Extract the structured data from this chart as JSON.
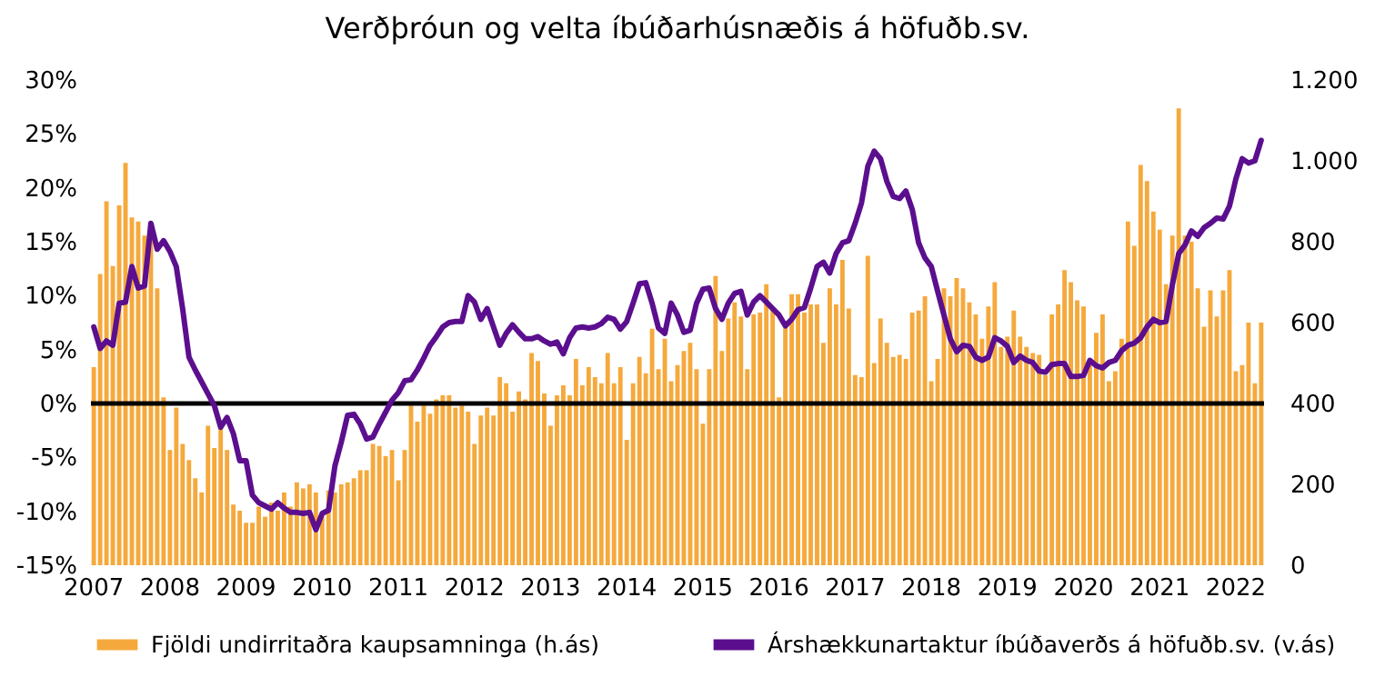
{
  "chart_data": {
    "type": "bar",
    "title": "Verðþróun og velta íbúðarhúsnæðis á höfuðb.sv.",
    "categories": [
      "2007",
      null,
      null,
      null,
      null,
      null,
      null,
      null,
      null,
      null,
      null,
      null,
      "2008",
      null,
      null,
      null,
      null,
      null,
      null,
      null,
      null,
      null,
      null,
      null,
      "2009",
      null,
      null,
      null,
      null,
      null,
      null,
      null,
      null,
      null,
      null,
      null,
      "2010",
      null,
      null,
      null,
      null,
      null,
      null,
      null,
      null,
      null,
      null,
      null,
      "2011",
      null,
      null,
      null,
      null,
      null,
      null,
      null,
      null,
      null,
      null,
      null,
      "2012",
      null,
      null,
      null,
      null,
      null,
      null,
      null,
      null,
      null,
      null,
      null,
      "2013",
      null,
      null,
      null,
      null,
      null,
      null,
      null,
      null,
      null,
      null,
      null,
      "2014",
      null,
      null,
      null,
      null,
      null,
      null,
      null,
      null,
      null,
      null,
      null,
      "2015",
      null,
      null,
      null,
      null,
      null,
      null,
      null,
      null,
      null,
      null,
      null,
      "2016",
      null,
      null,
      null,
      null,
      null,
      null,
      null,
      null,
      null,
      null,
      null,
      "2017",
      null,
      null,
      null,
      null,
      null,
      null,
      null,
      null,
      null,
      null,
      null,
      "2018",
      null,
      null,
      null,
      null,
      null,
      null,
      null,
      null,
      null,
      null,
      null,
      "2019",
      null,
      null,
      null,
      null,
      null,
      null,
      null,
      null,
      null,
      null,
      null,
      "2020",
      null,
      null,
      null,
      null,
      null,
      null,
      null,
      null,
      null,
      null,
      null,
      "2021",
      null,
      null,
      null,
      null,
      null,
      null,
      null,
      null,
      null,
      null,
      null,
      "2022",
      null,
      null,
      null,
      null
    ],
    "series": [
      {
        "name": "Fjöldi undirritaðra kaupsamninga (h.ás)",
        "axis": "y2",
        "color": "#f5a93c",
        "values": [
          490,
          720,
          900,
          740,
          890,
          995,
          860,
          850,
          815,
          825,
          685,
          415,
          285,
          390,
          300,
          260,
          215,
          180,
          345,
          290,
          340,
          285,
          150,
          135,
          105,
          105,
          145,
          120,
          155,
          135,
          180,
          145,
          205,
          190,
          200,
          180,
          120,
          185,
          180,
          200,
          205,
          215,
          235,
          235,
          300,
          295,
          270,
          285,
          210,
          285,
          395,
          355,
          395,
          375,
          410,
          420,
          420,
          390,
          395,
          380,
          300,
          370,
          390,
          370,
          465,
          450,
          380,
          430,
          410,
          525,
          505,
          425,
          345,
          420,
          445,
          420,
          510,
          445,
          490,
          465,
          450,
          525,
          450,
          490,
          310,
          450,
          515,
          475,
          585,
          485,
          560,
          455,
          495,
          530,
          550,
          485,
          350,
          485,
          715,
          530,
          610,
          650,
          615,
          485,
          620,
          625,
          695,
          635,
          415,
          590,
          670,
          670,
          625,
          645,
          645,
          550,
          685,
          645,
          755,
          635,
          470,
          465,
          765,
          500,
          610,
          550,
          515,
          520,
          510,
          625,
          630,
          665,
          455,
          510,
          685,
          665,
          710,
          685,
          650,
          620,
          560,
          640,
          700,
          540,
          565,
          630,
          565,
          540,
          525,
          520,
          470,
          620,
          645,
          730,
          700,
          655,
          640,
          500,
          575,
          620,
          455,
          480,
          560,
          850,
          790,
          990,
          950,
          875,
          830,
          695,
          815,
          1130,
          815,
          800,
          685,
          590,
          680,
          615,
          680,
          730,
          480,
          495,
          600,
          450,
          600
        ]
      },
      {
        "name": "Árshækkunartaktur íbúðaverðs á höfuðb.sv. (v.ás)",
        "type": "line",
        "color": "#5b0f8e",
        "values": [
          7.1,
          5.1,
          5.8,
          5.4,
          9.3,
          9.4,
          12.7,
          10.7,
          10.9,
          16.7,
          14.3,
          15.1,
          14.1,
          12.7,
          8.8,
          4.3,
          3.1,
          2,
          0.9,
          -0.2,
          -2.2,
          -1.3,
          -2.8,
          -5.3,
          -5.3,
          -8.5,
          -9.2,
          -9.5,
          -9.8,
          -9.2,
          -9.7,
          -10.1,
          -10.1,
          -10.2,
          -10.1,
          -11.7,
          -10.2,
          -9.9,
          -5.8,
          -3.6,
          -1.1,
          -1,
          -1.9,
          -3.3,
          -3.1,
          -1.9,
          -0.8,
          0.3,
          1,
          2.1,
          2.2,
          3.1,
          4.2,
          5.4,
          6.2,
          7.1,
          7.5,
          7.6,
          7.6,
          10,
          9.4,
          7.8,
          8.8,
          7.1,
          5.4,
          6.5,
          7.3,
          6.6,
          6,
          6,
          6.2,
          5.8,
          5.5,
          5.7,
          4.6,
          6.1,
          7,
          7.1,
          7,
          7.1,
          7.4,
          8,
          7.8,
          6.9,
          7.6,
          9.3,
          11.1,
          11.2,
          9.3,
          7,
          6.5,
          9.3,
          8.2,
          6.6,
          6.8,
          9.3,
          10.6,
          10.7,
          8.8,
          7.8,
          9.3,
          10.2,
          10.4,
          8.2,
          9.4,
          10,
          9.4,
          8.8,
          8.2,
          7.2,
          7.8,
          8.7,
          8.9,
          10.7,
          12.7,
          13.1,
          12.1,
          13.9,
          14.9,
          15.1,
          16.7,
          18.6,
          22,
          23.4,
          22.7,
          20.6,
          19.2,
          19,
          19.7,
          18,
          14.9,
          13.5,
          12.7,
          10.4,
          8.2,
          6,
          4.8,
          5.4,
          5.3,
          4.3,
          4,
          4.3,
          6.1,
          5.8,
          5.3,
          3.8,
          4.4,
          4,
          3.8,
          3,
          2.9,
          3.6,
          3.7,
          3.7,
          2.5,
          2.5,
          2.6,
          4,
          3.5,
          3.3,
          3.8,
          4,
          4.9,
          5.4,
          5.6,
          6.1,
          7.1,
          7.8,
          7.5,
          7.6,
          11,
          13.9,
          14.7,
          16,
          15.5,
          16.3,
          16.7,
          17.2,
          17.1,
          18.3,
          20.8,
          22.7,
          22.3,
          22.5,
          24.4
        ]
      }
    ],
    "ylim": [
      -15,
      30
    ],
    "yticks": [
      {
        "value": -15,
        "label": "-15%"
      },
      {
        "value": -10,
        "label": "-10%"
      },
      {
        "value": -5,
        "label": "-5%"
      },
      {
        "value": 0,
        "label": "0%"
      },
      {
        "value": 5,
        "label": "5%"
      },
      {
        "value": 10,
        "label": "10%"
      },
      {
        "value": 15,
        "label": "15%"
      },
      {
        "value": 20,
        "label": "20%"
      },
      {
        "value": 25,
        "label": "25%"
      },
      {
        "value": 30,
        "label": "30%"
      }
    ],
    "y2lim": [
      0,
      1200
    ],
    "y2ticks": [
      0,
      200,
      400,
      600,
      800,
      {
        "value": 1000,
        "label": "1.000"
      },
      {
        "value": 1200,
        "label": "1.200"
      }
    ],
    "ref_lines": [
      {
        "axis": "y",
        "value": 0,
        "color": "#000000"
      }
    ],
    "legend": "bottom"
  }
}
